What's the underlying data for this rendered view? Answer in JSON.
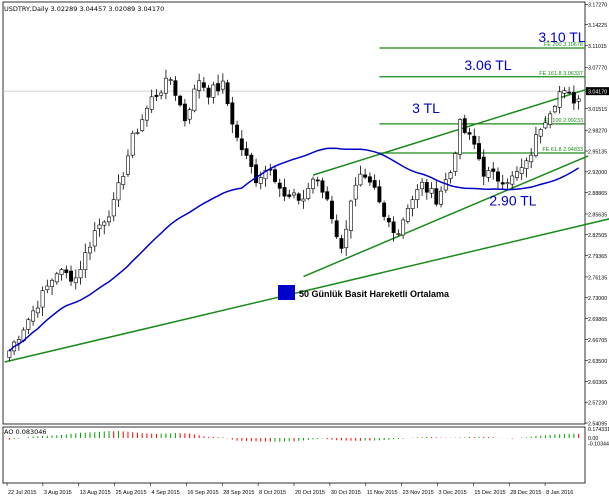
{
  "header": {
    "symbol_line": "USDTRY,Daily  3.02289 3.04457 3.02089 3.04170",
    "indicator_line": "AO 0.083046"
  },
  "legend": {
    "label": "50 Günlük Basit Hareketli Ortalama",
    "color": "#0000ff"
  },
  "colors": {
    "up": "#00a000",
    "down": "#ff0000",
    "ma": "#0000cc",
    "trend": "#1a8a1a",
    "fib": "#1a8a1a",
    "annotation": "#0000cc"
  },
  "chart_data": [
    {
      "type": "candlestick",
      "name": "USDTRY,Daily",
      "ylim": [
        2.5395,
        3.1762
      ],
      "y_ticks": [
        "3.17270",
        "3.14225",
        "3.11015",
        "3.07770",
        "3.04170",
        "3.01515",
        "2.98270",
        "2.95135",
        "2.92000",
        "2.88865",
        "2.85635",
        "2.82505",
        "2.79365",
        "2.76135",
        "2.73000",
        "2.69865",
        "2.66705",
        "2.63500",
        "2.60365",
        "2.57230",
        "2.54095"
      ],
      "last_price_label": "3.04170",
      "x_labels": [
        "22 Jul 2015",
        "3 Aug 2015",
        "13 Aug 2015",
        "25 Aug 2015",
        "4 Sep 2015",
        "16 Sep 2015",
        "28 Sep 2015",
        "8 Oct 2015",
        "20 Oct 2015",
        "30 Oct 2015",
        "11 Nov 2015",
        "23 Nov 2015",
        "3 Dec 2015",
        "15 Dec 2015",
        "28 Dec 2015",
        "8 Jan 2016"
      ],
      "anchors": [
        [
          0,
          2.65
        ],
        [
          10,
          2.77
        ],
        [
          14,
          2.76
        ],
        [
          18,
          2.83
        ],
        [
          22,
          2.87
        ],
        [
          26,
          2.97
        ],
        [
          30,
          3.03
        ],
        [
          34,
          3.06
        ],
        [
          37,
          3.0
        ],
        [
          40,
          3.06
        ],
        [
          42,
          3.04
        ],
        [
          45,
          3.05
        ],
        [
          48,
          2.97
        ],
        [
          52,
          2.91
        ],
        [
          55,
          2.93
        ],
        [
          58,
          2.88
        ],
        [
          62,
          2.88
        ],
        [
          64,
          2.91
        ],
        [
          67,
          2.88
        ],
        [
          70,
          2.8
        ],
        [
          72,
          2.88
        ],
        [
          74,
          2.91
        ],
        [
          77,
          2.89
        ],
        [
          79,
          2.85
        ],
        [
          82,
          2.83
        ],
        [
          84,
          2.87
        ],
        [
          87,
          2.9
        ],
        [
          90,
          2.88
        ],
        [
          93,
          2.92
        ],
        [
          95,
          2.99
        ],
        [
          98,
          2.96
        ],
        [
          100,
          2.92
        ],
        [
          103,
          2.91
        ],
        [
          106,
          2.91
        ],
        [
          109,
          2.93
        ],
        [
          112,
          2.99
        ],
        [
          116,
          3.04
        ],
        [
          119,
          3.03
        ]
      ],
      "moving_average": {
        "name": "50 Günlük Basit Hareketli Ortalama",
        "period": 50
      },
      "fibonacci_levels": [
        {
          "label": "FE 200 3.10678",
          "value": 3.10678
        },
        {
          "label": "FE 161.8 3.06337",
          "value": 3.06337
        },
        {
          "label": "FE 100 2.99233",
          "value": 2.99233
        },
        {
          "label": "FE 61.8 2.94833",
          "value": 2.94833
        }
      ],
      "price_annotations": [
        {
          "label": "3.10 TL",
          "value": 3.125
        },
        {
          "label": "3.06 TL",
          "value": 3.083
        },
        {
          "label": "3 TL",
          "value": 3.018
        },
        {
          "label": "2.90 TL",
          "value": 2.878
        }
      ],
      "trendlines": [
        {
          "from": [
            -1,
            2.633
          ],
          "to": [
            130,
            2.855
          ]
        },
        {
          "from": [
            62,
            2.762
          ],
          "to": [
            122,
            2.944
          ]
        },
        {
          "from": [
            64,
            2.915
          ],
          "to": [
            122,
            3.045
          ]
        }
      ]
    },
    {
      "type": "histogram",
      "name": "AO",
      "value_label": "0.083046",
      "ylim": [
        -0.1034,
        0.1743
      ],
      "y_ticks": [
        "0.174331",
        "0.00",
        "-0.103441"
      ],
      "values_anchor": [
        [
          0,
          -0.035
        ],
        [
          5,
          0.03
        ],
        [
          10,
          0.05
        ],
        [
          15,
          0.1
        ],
        [
          20,
          0.125
        ],
        [
          23,
          0.14
        ],
        [
          27,
          0.1
        ],
        [
          31,
          0.08
        ],
        [
          35,
          0.095
        ],
        [
          38,
          0.085
        ],
        [
          42,
          0.02
        ],
        [
          45,
          0.015
        ],
        [
          48,
          -0.05
        ],
        [
          52,
          -0.065
        ],
        [
          56,
          -0.07
        ],
        [
          60,
          -0.063
        ],
        [
          63,
          -0.035
        ],
        [
          66,
          -0.01
        ],
        [
          69,
          -0.045
        ],
        [
          73,
          -0.055
        ],
        [
          78,
          -0.045
        ],
        [
          82,
          -0.02
        ],
        [
          85,
          0.005
        ],
        [
          88,
          0.025
        ],
        [
          91,
          0.005
        ],
        [
          94,
          0.005
        ],
        [
          97,
          0.015
        ],
        [
          99,
          0.025
        ],
        [
          102,
          0.01
        ],
        [
          106,
          -0.01
        ],
        [
          109,
          0.015
        ],
        [
          112,
          0.05
        ],
        [
          116,
          0.07
        ],
        [
          119,
          0.085
        ]
      ]
    }
  ]
}
